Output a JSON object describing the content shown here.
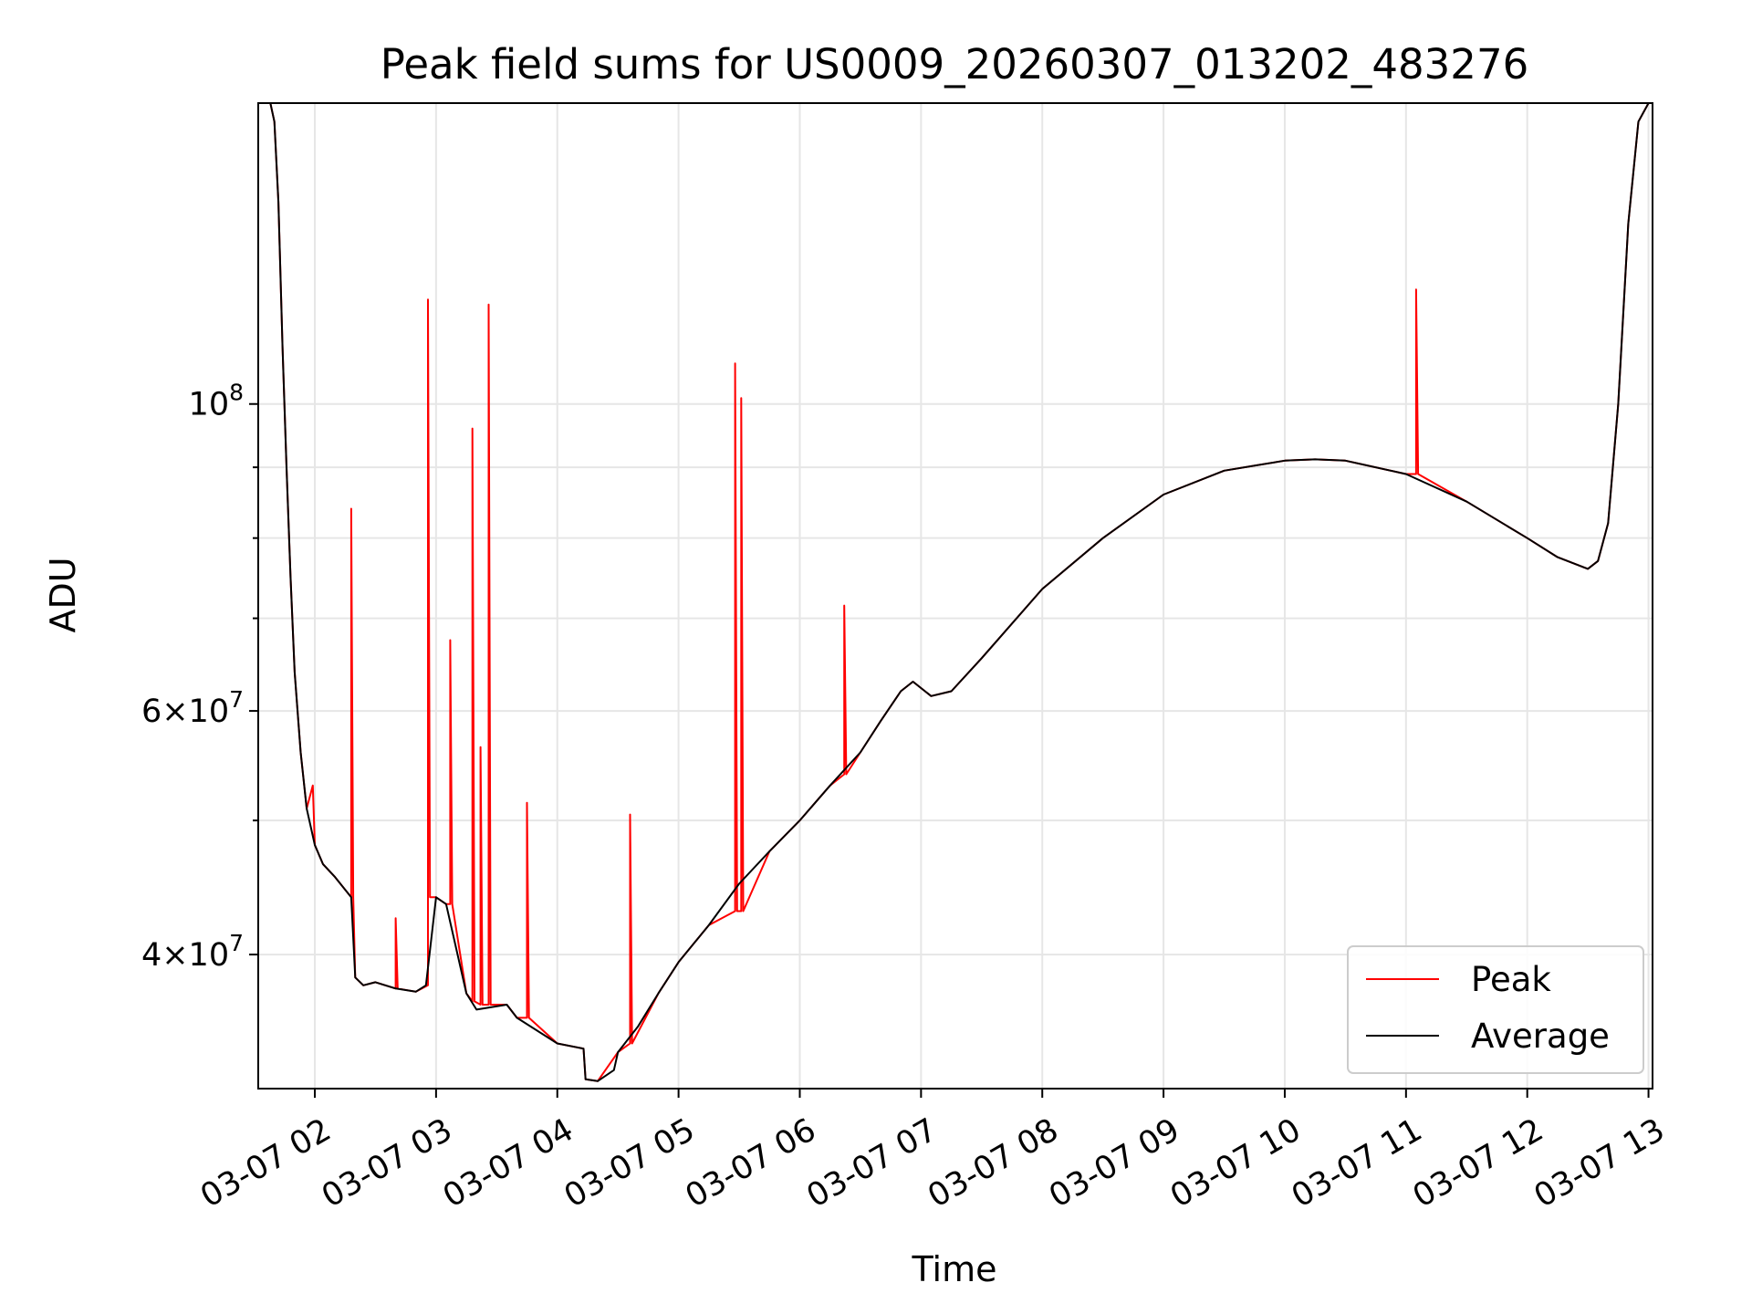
{
  "chart_data": {
    "type": "line",
    "title": "Peak field sums for US0009_20260307_013202_483276",
    "xlabel": "Time",
    "ylabel": "ADU",
    "yscale": "log",
    "ylim": [
      32000000,
      165000000
    ],
    "xlim": [
      "2026-03-07 01:32",
      "2026-03-07 13:02"
    ],
    "grid": true,
    "legend_position": "lower right",
    "x_tick_labels": [
      "03-07 02",
      "03-07 03",
      "03-07 04",
      "03-07 05",
      "03-07 06",
      "03-07 07",
      "03-07 08",
      "03-07 09",
      "03-07 10",
      "03-07 11",
      "03-07 12",
      "03-07 13"
    ],
    "y_tick_labels": [
      {
        "value": 40000000,
        "mantissa": "4",
        "exp": "7"
      },
      {
        "value": 60000000,
        "mantissa": "6",
        "exp": "7"
      },
      {
        "value": 100000000,
        "mantissa": "",
        "exp": "8"
      }
    ],
    "y_minor_ticks": [
      50000000,
      70000000,
      80000000,
      90000000
    ],
    "colors": {
      "peak": "#ff0000",
      "average": "#000000"
    },
    "series": [
      {
        "name": "Average",
        "x": [
          "2026-03-07 01:38",
          "2026-03-07 01:40",
          "2026-03-07 01:42",
          "2026-03-07 01:44",
          "2026-03-07 01:46",
          "2026-03-07 01:48",
          "2026-03-07 01:50",
          "2026-03-07 01:53",
          "2026-03-07 01:56",
          "2026-03-07 02:00",
          "2026-03-07 02:04",
          "2026-03-07 02:10",
          "2026-03-07 02:18",
          "2026-03-07 02:20",
          "2026-03-07 02:24",
          "2026-03-07 02:30",
          "2026-03-07 02:40",
          "2026-03-07 02:50",
          "2026-03-07 02:55",
          "2026-03-07 03:00",
          "2026-03-07 03:05",
          "2026-03-07 03:15",
          "2026-03-07 03:20",
          "2026-03-07 03:35",
          "2026-03-07 03:40",
          "2026-03-07 04:00",
          "2026-03-07 04:13",
          "2026-03-07 04:14",
          "2026-03-07 04:20",
          "2026-03-07 04:28",
          "2026-03-07 04:30",
          "2026-03-07 04:40",
          "2026-03-07 04:50",
          "2026-03-07 05:00",
          "2026-03-07 05:15",
          "2026-03-07 05:30",
          "2026-03-07 05:45",
          "2026-03-07 06:00",
          "2026-03-07 06:15",
          "2026-03-07 06:30",
          "2026-03-07 06:40",
          "2026-03-07 06:50",
          "2026-03-07 06:56",
          "2026-03-07 07:05",
          "2026-03-07 07:15",
          "2026-03-07 07:30",
          "2026-03-07 08:00",
          "2026-03-07 08:30",
          "2026-03-07 09:00",
          "2026-03-07 09:30",
          "2026-03-07 10:00",
          "2026-03-07 10:15",
          "2026-03-07 10:30",
          "2026-03-07 11:00",
          "2026-03-07 11:30",
          "2026-03-07 12:00",
          "2026-03-07 12:15",
          "2026-03-07 12:30",
          "2026-03-07 12:35",
          "2026-03-07 12:40",
          "2026-03-07 12:45",
          "2026-03-07 12:50",
          "2026-03-07 12:55",
          "2026-03-07 13:00",
          "2026-03-07 13:02"
        ],
        "values": [
          165000000,
          160000000,
          140000000,
          110000000,
          90000000,
          75000000,
          64000000,
          56000000,
          51000000,
          48000000,
          46500000,
          45500000,
          44000000,
          38500000,
          38000000,
          38200000,
          37800000,
          37600000,
          38000000,
          44000000,
          43500000,
          37500000,
          36500000,
          36800000,
          36000000,
          34500000,
          34200000,
          32500000,
          32400000,
          33000000,
          34000000,
          35500000,
          37500000,
          39500000,
          42000000,
          45000000,
          47500000,
          50000000,
          53000000,
          56000000,
          59000000,
          62000000,
          63000000,
          61500000,
          62000000,
          65500000,
          73500000,
          80000000,
          86000000,
          89500000,
          91000000,
          91200000,
          91000000,
          89000000,
          85000000,
          80000000,
          77500000,
          76000000,
          77000000,
          82000000,
          100000000,
          135000000,
          160000000,
          165000000,
          165000000
        ]
      },
      {
        "name": "Peak",
        "x": [
          "2026-03-07 01:38",
          "2026-03-07 01:40",
          "2026-03-07 01:42",
          "2026-03-07 01:44",
          "2026-03-07 01:46",
          "2026-03-07 01:48",
          "2026-03-07 01:50",
          "2026-03-07 01:53",
          "2026-03-07 01:56",
          "2026-03-07 01:59",
          "2026-03-07 02:00",
          "2026-03-07 02:04",
          "2026-03-07 02:10",
          "2026-03-07 02:18",
          "2026-03-07 02:18",
          "2026-03-07 02:19",
          "2026-03-07 02:20",
          "2026-03-07 02:24",
          "2026-03-07 02:30",
          "2026-03-07 02:40",
          "2026-03-07 02:40",
          "2026-03-07 02:41",
          "2026-03-07 02:50",
          "2026-03-07 02:56",
          "2026-03-07 02:56",
          "2026-03-07 02:57",
          "2026-03-07 03:00",
          "2026-03-07 03:05",
          "2026-03-07 03:07",
          "2026-03-07 03:07",
          "2026-03-07 03:08",
          "2026-03-07 03:15",
          "2026-03-07 03:18",
          "2026-03-07 03:18",
          "2026-03-07 03:19",
          "2026-03-07 03:22",
          "2026-03-07 03:22",
          "2026-03-07 03:23",
          "2026-03-07 03:26",
          "2026-03-07 03:26",
          "2026-03-07 03:27",
          "2026-03-07 03:35",
          "2026-03-07 03:40",
          "2026-03-07 03:45",
          "2026-03-07 03:45",
          "2026-03-07 03:46",
          "2026-03-07 04:00",
          "2026-03-07 04:13",
          "2026-03-07 04:14",
          "2026-03-07 04:20",
          "2026-03-07 04:30",
          "2026-03-07 04:36",
          "2026-03-07 04:36",
          "2026-03-07 04:37",
          "2026-03-07 04:50",
          "2026-03-07 05:00",
          "2026-03-07 05:15",
          "2026-03-07 05:28",
          "2026-03-07 05:28",
          "2026-03-07 05:29",
          "2026-03-07 05:30",
          "2026-03-07 05:31",
          "2026-03-07 05:31",
          "2026-03-07 05:32",
          "2026-03-07 05:45",
          "2026-03-07 06:00",
          "2026-03-07 06:15",
          "2026-03-07 06:22",
          "2026-03-07 06:22",
          "2026-03-07 06:23",
          "2026-03-07 06:30",
          "2026-03-07 06:40",
          "2026-03-07 06:50",
          "2026-03-07 06:56",
          "2026-03-07 07:05",
          "2026-03-07 07:15",
          "2026-03-07 07:30",
          "2026-03-07 08:00",
          "2026-03-07 08:30",
          "2026-03-07 09:00",
          "2026-03-07 09:30",
          "2026-03-07 10:00",
          "2026-03-07 10:15",
          "2026-03-07 10:30",
          "2026-03-07 11:00",
          "2026-03-07 11:05",
          "2026-03-07 11:05",
          "2026-03-07 11:06",
          "2026-03-07 11:30",
          "2026-03-07 12:00",
          "2026-03-07 12:15",
          "2026-03-07 12:30",
          "2026-03-07 12:35",
          "2026-03-07 12:40",
          "2026-03-07 12:45",
          "2026-03-07 12:50",
          "2026-03-07 12:55",
          "2026-03-07 13:00",
          "2026-03-07 13:02"
        ],
        "values": [
          165000000,
          160000000,
          140000000,
          110000000,
          90000000,
          75000000,
          64000000,
          56000000,
          51000000,
          53000000,
          48000000,
          46500000,
          45500000,
          44000000,
          84000000,
          44000000,
          38500000,
          38000000,
          38200000,
          37800000,
          42500000,
          37800000,
          37600000,
          38000000,
          119000000,
          44000000,
          44000000,
          43500000,
          43500000,
          67500000,
          43500000,
          37500000,
          37000000,
          96000000,
          37000000,
          36800000,
          56500000,
          36800000,
          36800000,
          118000000,
          36800000,
          36800000,
          36000000,
          36000000,
          51500000,
          36000000,
          34500000,
          34200000,
          32500000,
          32400000,
          34000000,
          34500000,
          50500000,
          34500000,
          37500000,
          39500000,
          42000000,
          43000000,
          107000000,
          43000000,
          43000000,
          43000000,
          101000000,
          43000000,
          47500000,
          50000000,
          53000000,
          54000000,
          71500000,
          54000000,
          56000000,
          59000000,
          62000000,
          63000000,
          61500000,
          62000000,
          65500000,
          73500000,
          80000000,
          86000000,
          89500000,
          91000000,
          91200000,
          91000000,
          89000000,
          89000000,
          121000000,
          89000000,
          85000000,
          80000000,
          77500000,
          76000000,
          77000000,
          82000000,
          100000000,
          135000000,
          160000000,
          165000000,
          165000000
        ]
      }
    ]
  }
}
